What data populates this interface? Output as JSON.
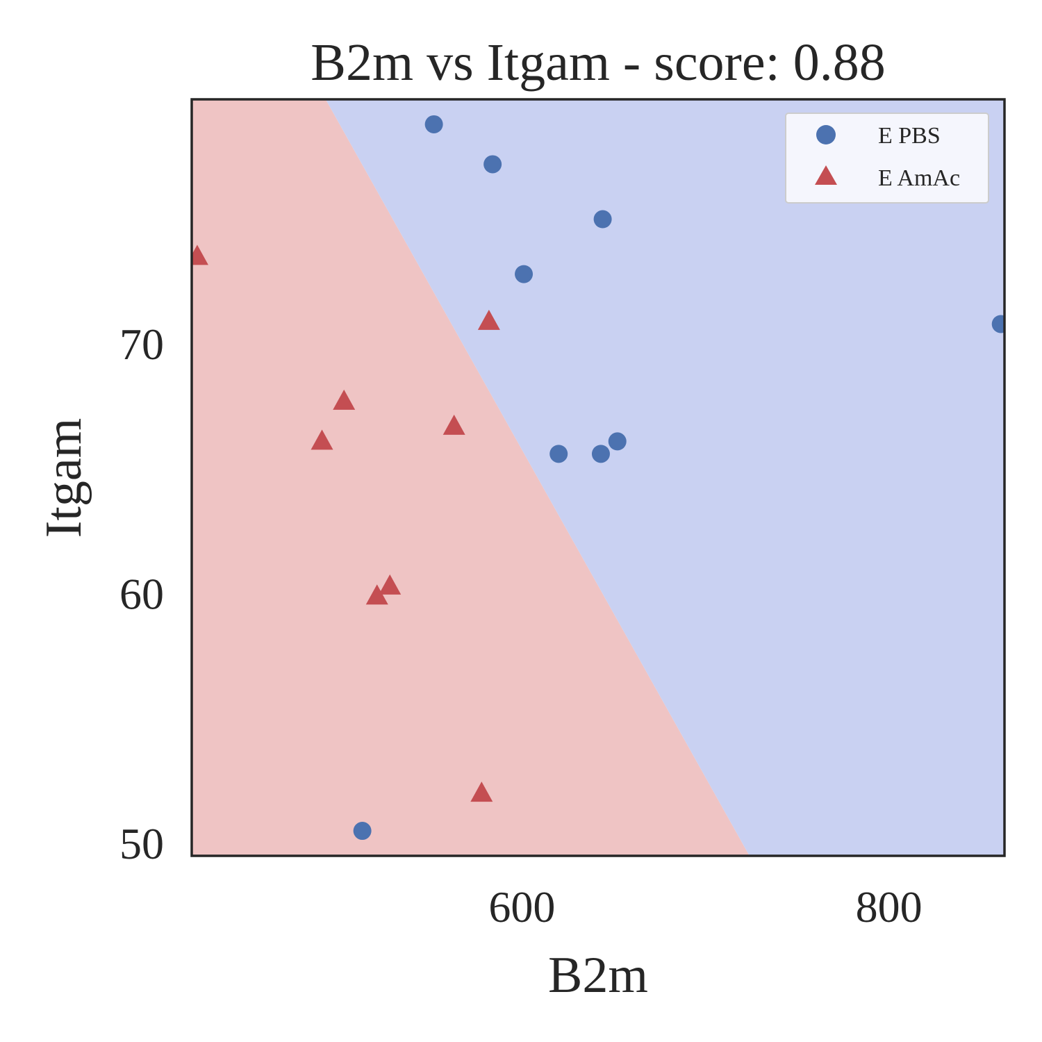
{
  "chart_data": {
    "type": "scatter",
    "title": "B2m vs Itgam - score: 0.88",
    "xlabel": "B2m",
    "ylabel": "Itgam",
    "xlim": [
      420,
      863
    ],
    "ylim": [
      49.5,
      79.8
    ],
    "xticks": [
      600,
      800
    ],
    "xtick_labels": [
      "600",
      "800"
    ],
    "yticks": [
      50,
      60,
      70
    ],
    "ytick_labels": [
      "50",
      "60",
      "70"
    ],
    "grid": false,
    "legend_position": "top-right",
    "decision_regions": {
      "boundary": [
        [
          493,
          79.8
        ],
        [
          724,
          49.5
        ]
      ],
      "left_region_color": "#efc4c4",
      "right_region_color": "#c9d1f2"
    },
    "series": [
      {
        "name": "E PBS",
        "marker": "circle",
        "color": "#4c72b0",
        "points": [
          [
            552,
            78.8
          ],
          [
            584,
            77.2
          ],
          [
            644,
            75.0
          ],
          [
            601,
            72.8
          ],
          [
            861,
            70.8
          ],
          [
            643,
            65.6
          ],
          [
            652,
            66.1
          ],
          [
            620,
            65.6
          ],
          [
            513,
            50.5
          ]
        ]
      },
      {
        "name": "E AmAc",
        "marker": "triangle",
        "color": "#c44e52",
        "points": [
          [
            423,
            73.5
          ],
          [
            582,
            70.9
          ],
          [
            503,
            67.7
          ],
          [
            491,
            66.1
          ],
          [
            563,
            66.7
          ],
          [
            528,
            60.3
          ],
          [
            521,
            59.9
          ],
          [
            578,
            52.0
          ]
        ]
      }
    ]
  }
}
